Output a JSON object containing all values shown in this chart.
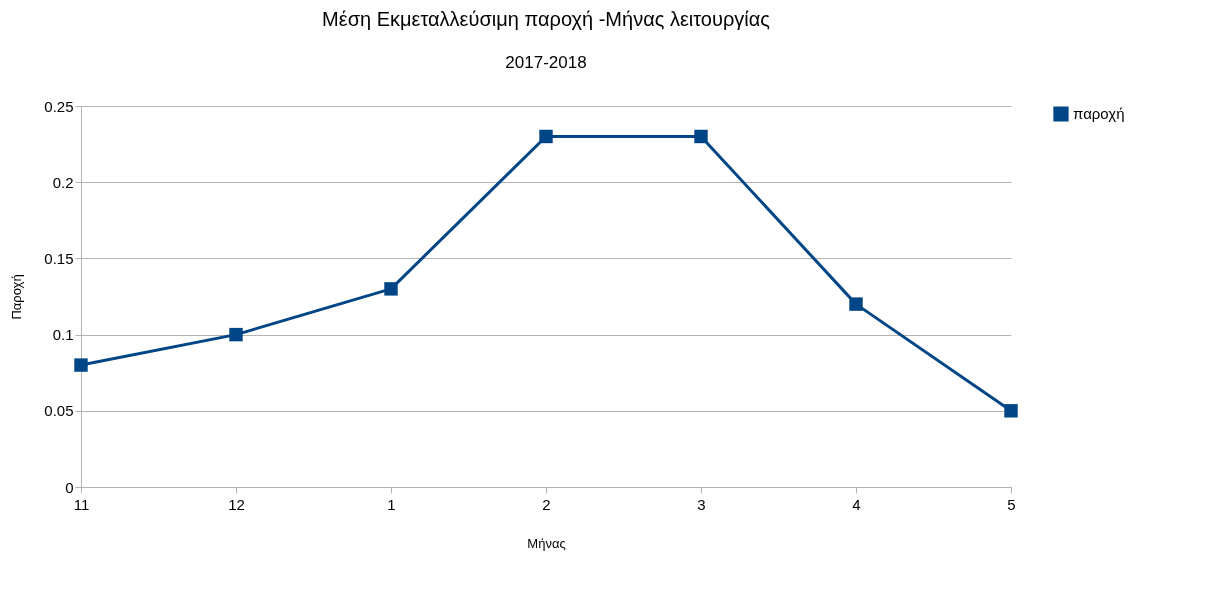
{
  "chart_data": {
    "type": "line",
    "title": "Μέση Εκμεταλλεύσιμη παροχή -Μήνας λειτουργίας",
    "subtitle": "2017-2018",
    "xlabel": "Μήνας",
    "ylabel": "Παροχή",
    "categories": [
      "11",
      "12",
      "1",
      "2",
      "3",
      "4",
      "5"
    ],
    "series": [
      {
        "name": "παροχή",
        "color": "#004586",
        "values": [
          0.08,
          0.1,
          0.13,
          0.23,
          0.23,
          0.12,
          0.05
        ]
      }
    ],
    "ylim": [
      0,
      0.25
    ],
    "yticks": [
      0,
      0.05,
      0.1,
      0.15,
      0.2,
      0.25
    ],
    "grid": "y",
    "legend": "right",
    "marker": "square",
    "line_style": "solid"
  }
}
